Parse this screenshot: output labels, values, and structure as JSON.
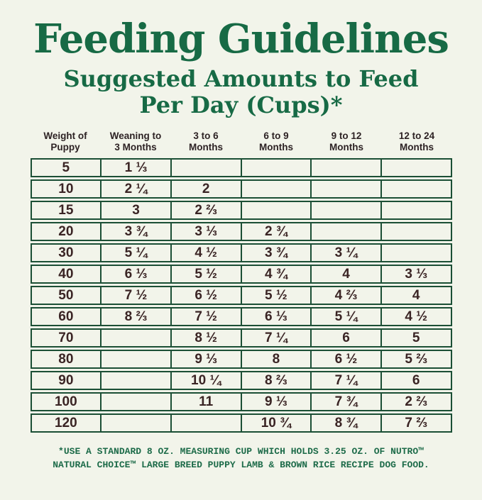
{
  "page": {
    "title": "Feeding Guidelines",
    "subtitle_line1": "Suggested Amounts to Feed",
    "subtitle_line2": "Per Day (Cups)*"
  },
  "table": {
    "headers": [
      {
        "line1": "Weight of",
        "line2": "Puppy"
      },
      {
        "line1": "Weaning to",
        "line2": "3 Months"
      },
      {
        "line1": "3 to 6",
        "line2": "Months"
      },
      {
        "line1": "6 to 9",
        "line2": "Months"
      },
      {
        "line1": "9 to 12",
        "line2": "Months"
      },
      {
        "line1": "12 to 24",
        "line2": "Months"
      }
    ]
  },
  "chart_data": {
    "type": "table",
    "title": "Feeding Guidelines",
    "subtitle": "Suggested Amounts to Feed Per Day (Cups)*",
    "columns": [
      "Weight of Puppy",
      "Weaning to 3 Months",
      "3 to 6 Months",
      "6 to 9 Months",
      "9 to 12 Months",
      "12 to 24 Months"
    ],
    "rows": [
      [
        "5",
        "1 ⅓",
        "",
        "",
        "",
        ""
      ],
      [
        "10",
        "2 ¼",
        "2",
        "",
        "",
        ""
      ],
      [
        "15",
        "3",
        "2 ⅔",
        "",
        "",
        ""
      ],
      [
        "20",
        "3 ¾",
        "3 ⅓",
        "2 ¾",
        "",
        ""
      ],
      [
        "30",
        "5 ¼",
        "4 ½",
        "3 ¾",
        "3 ¼",
        ""
      ],
      [
        "40",
        "6 ⅓",
        "5 ½",
        "4 ¾",
        "4",
        "3 ⅓"
      ],
      [
        "50",
        "7 ½",
        "6 ½",
        "5 ½",
        "4 ⅔",
        "4"
      ],
      [
        "60",
        "8 ⅔",
        "7 ½",
        "6 ⅓",
        "5 ¼",
        "4 ½"
      ],
      [
        "70",
        "",
        "8 ½",
        "7 ¼",
        "6",
        "5"
      ],
      [
        "80",
        "",
        "9 ⅓",
        "8",
        "6 ½",
        "5 ⅔"
      ],
      [
        "90",
        "",
        "10 ¼",
        "8 ⅔",
        "7 ¼",
        "6"
      ],
      [
        "100",
        "",
        "11",
        "9 ⅓",
        "7 ¾",
        "2 ⅔"
      ],
      [
        "120",
        "",
        "",
        "10 ¾",
        "8 ¾",
        "7 ⅔"
      ]
    ]
  },
  "footnote": {
    "line1": "*USE A STANDARD 8 OZ. MEASURING CUP WHICH HOLDS 3.25 OZ. OF NUTRO™",
    "line2": "NATURAL CHOICE™ LARGE BREED PUPPY LAMB & BROWN RICE RECIPE DOG FOOD."
  }
}
